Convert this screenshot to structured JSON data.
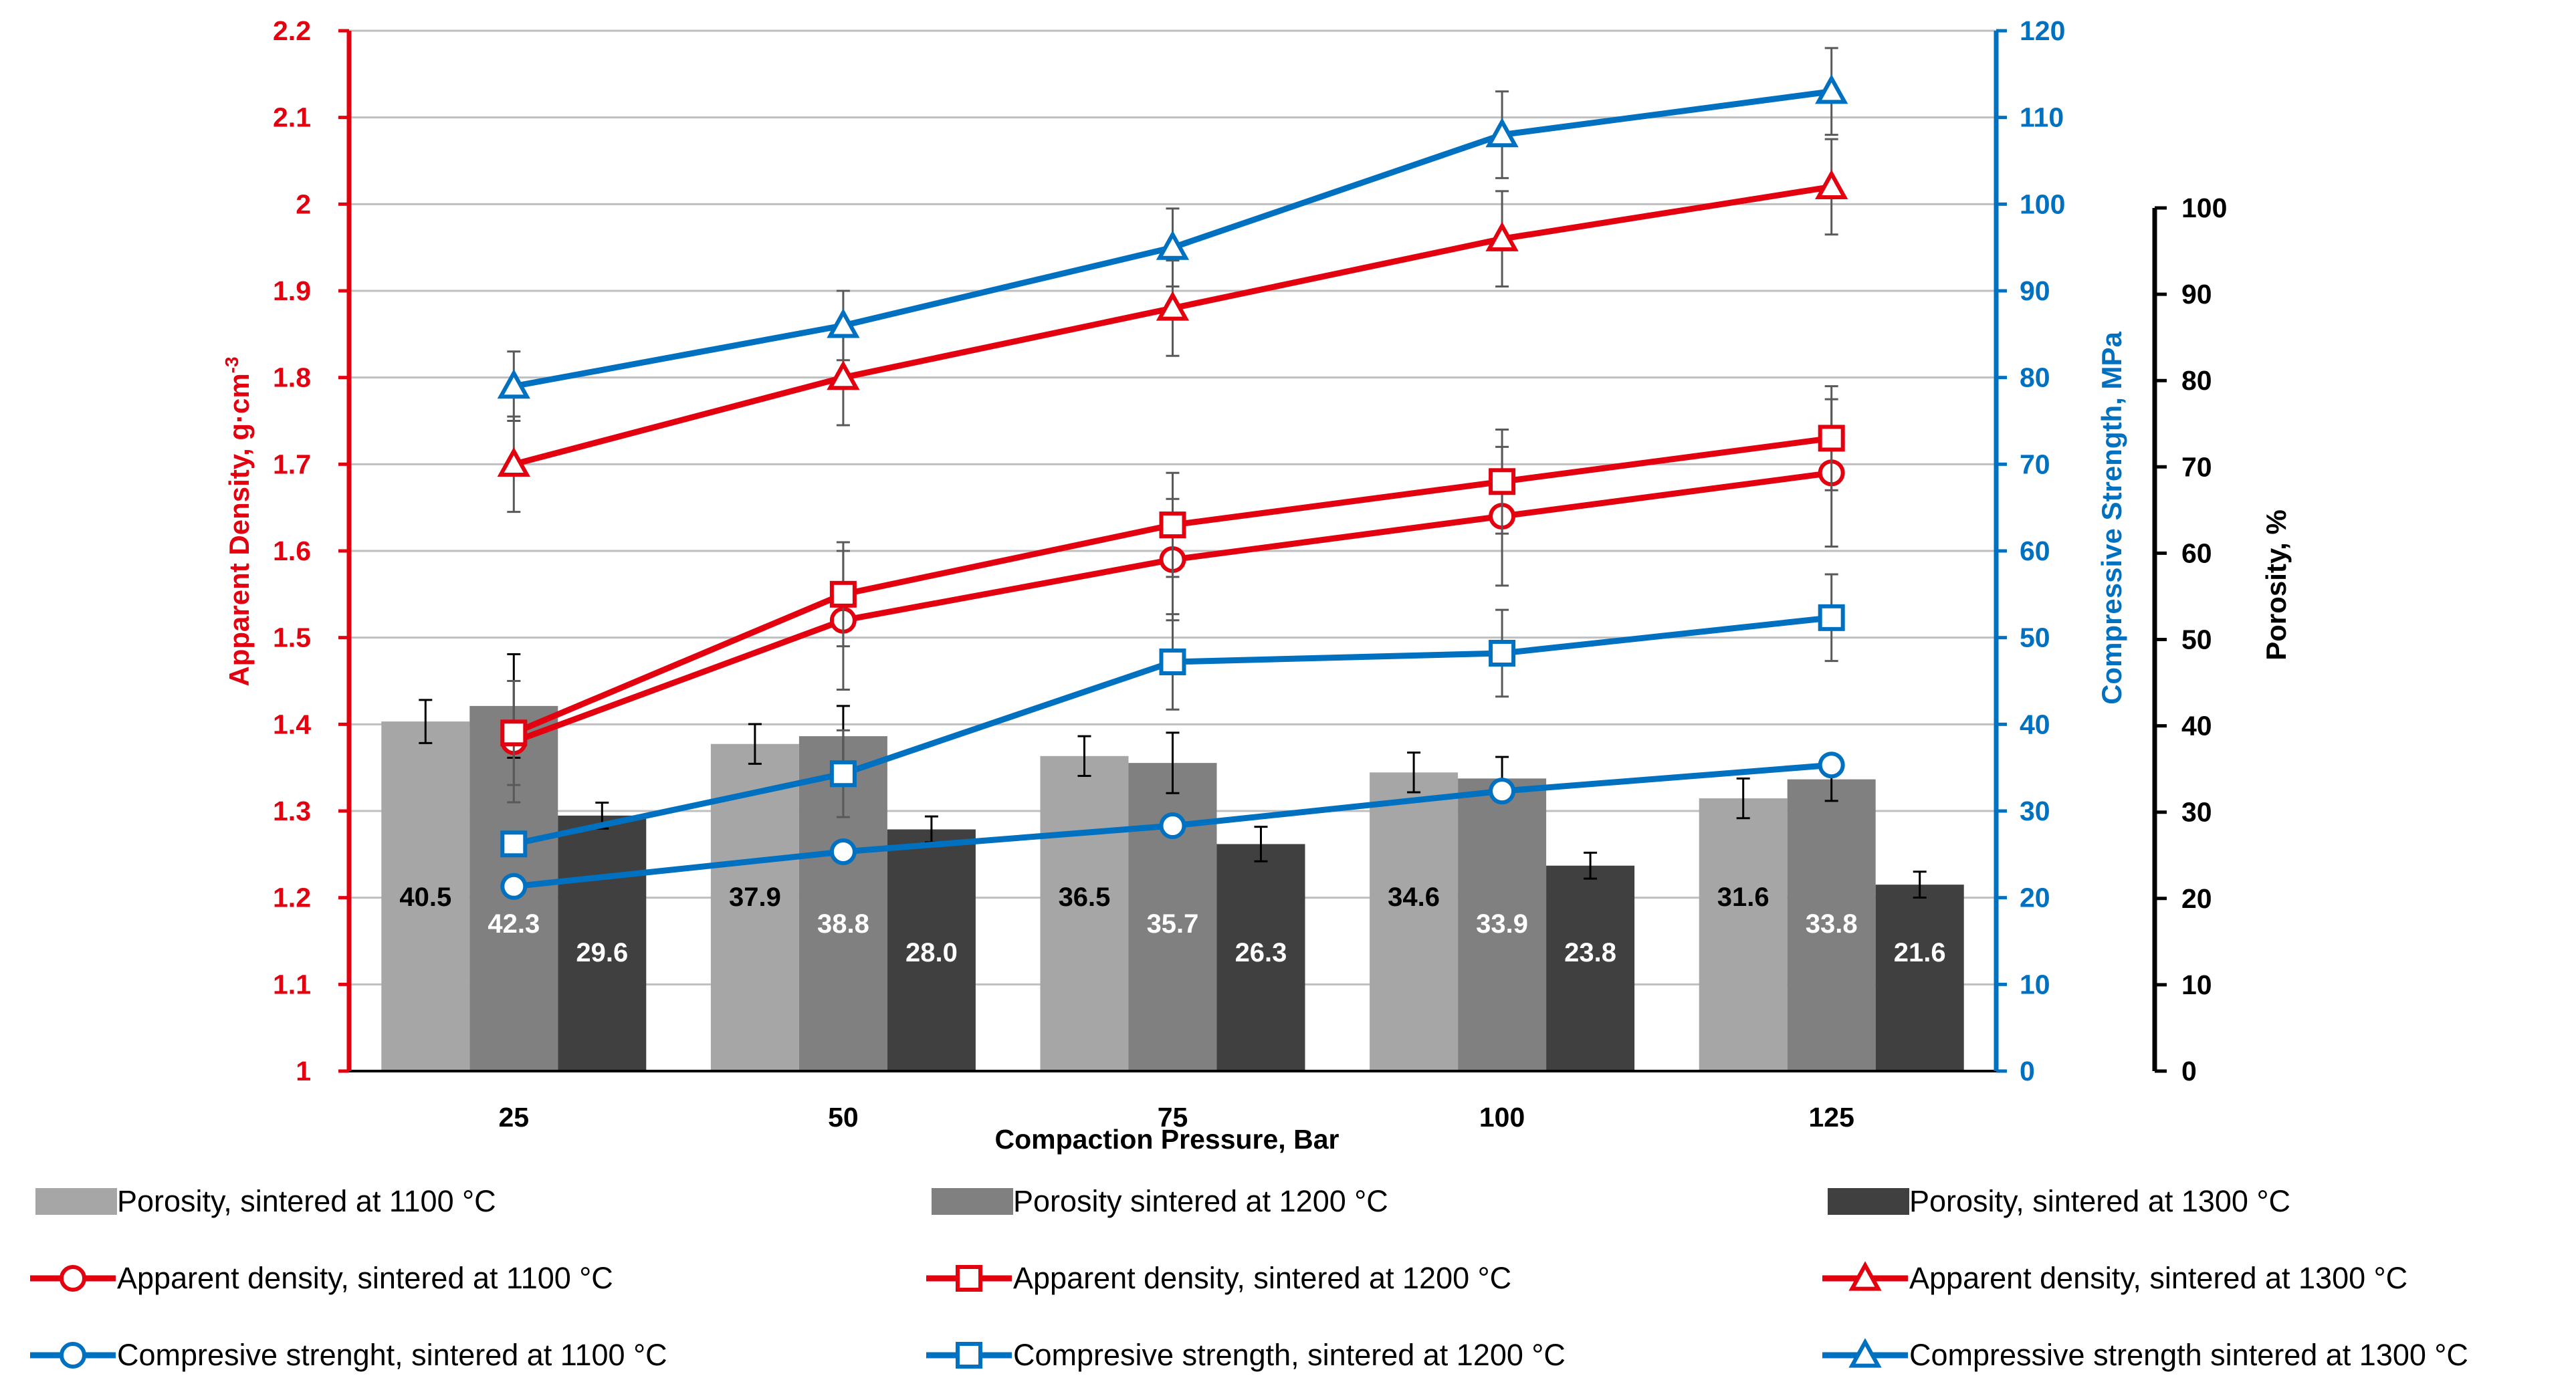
{
  "chart_data": {
    "type": "bar+line",
    "xlabel": "Compaction Pressure, Bar",
    "categories": [
      "25",
      "50",
      "75",
      "100",
      "125"
    ],
    "axes": {
      "density": {
        "label_main": "Apparent Density, g·cm",
        "label_sup": "-3",
        "range": [
          1,
          2.2
        ],
        "ticks": [
          "1",
          "1.1",
          "1.2",
          "1.3",
          "1.4",
          "1.5",
          "1.6",
          "1.7",
          "1.8",
          "1.9",
          "2",
          "2.1",
          "2.2"
        ],
        "color": "#e3000f"
      },
      "strength": {
        "label": "Compressive Strength, MPa",
        "range": [
          0,
          120
        ],
        "ticks": [
          "0",
          "10",
          "20",
          "30",
          "40",
          "50",
          "60",
          "70",
          "80",
          "90",
          "100",
          "110",
          "120"
        ],
        "color": "#0070c0"
      },
      "porosity": {
        "label": "Porosity, %",
        "range": [
          0,
          100
        ],
        "ticks": [
          "0",
          "10",
          "20",
          "30",
          "40",
          "50",
          "60",
          "70",
          "80",
          "90",
          "100"
        ],
        "color": "#000000"
      }
    },
    "bar_series": [
      {
        "name": "Porosity, sintered at 1100 °C",
        "color": "#a6a6a6",
        "label_color": "#000000",
        "values": [
          40.5,
          37.9,
          36.5,
          34.6,
          31.6
        ],
        "labels": [
          "40.5",
          "37.9",
          "36.5",
          "34.6",
          "31.6"
        ],
        "errors": [
          2.5,
          2.3,
          2.3,
          2.3,
          2.3
        ]
      },
      {
        "name": "Porosity sintered at 1200 °C",
        "color": "#808080",
        "label_color": "#ffffff",
        "values": [
          42.3,
          38.8,
          35.7,
          33.9,
          33.8
        ],
        "labels": [
          "42.3",
          "38.8",
          "35.7",
          "33.9",
          "33.8"
        ],
        "errors": [
          6.0,
          3.5,
          3.5,
          2.5,
          2.5
        ]
      },
      {
        "name": "Porosity, sintered at 1300 °C",
        "color": "#404040",
        "label_color": "#ffffff",
        "values": [
          29.6,
          28.0,
          26.3,
          23.8,
          21.6
        ],
        "labels": [
          "29.6",
          "28.0",
          "26.3",
          "23.8",
          "21.6"
        ],
        "errors": [
          1.5,
          1.5,
          2.0,
          1.5,
          1.5
        ]
      }
    ],
    "line_series": [
      {
        "name": "Apparent density, sintered at 1100 °C",
        "axis": "density",
        "color": "#e3000f",
        "marker": "circle",
        "values": [
          1.38,
          1.52,
          1.59,
          1.64,
          1.69
        ],
        "errors": [
          0.07,
          0.08,
          0.07,
          0.08,
          0.085
        ]
      },
      {
        "name": "Apparent density, sintered at 1200 °C",
        "axis": "density",
        "color": "#e3000f",
        "marker": "square",
        "values": [
          1.39,
          1.55,
          1.63,
          1.68,
          1.73
        ],
        "errors": [
          0.06,
          0.06,
          0.06,
          0.06,
          0.06
        ]
      },
      {
        "name": "Apparent density, sintered at 1300 °C",
        "axis": "density",
        "color": "#e3000f",
        "marker": "triangle",
        "values": [
          1.7,
          1.8,
          1.88,
          1.96,
          2.02
        ],
        "errors": [
          0.055,
          0.055,
          0.055,
          0.055,
          0.055
        ]
      },
      {
        "name": "Compresive strenght, sintered at 1100 °C",
        "axis": "strength",
        "color": "#0070c0",
        "marker": "circle",
        "values": [
          21.3,
          25.3,
          28.3,
          32.3,
          35.3
        ],
        "errors": [
          0,
          0,
          0,
          0,
          0
        ]
      },
      {
        "name": "Compresive strength, sintered at 1200 °C",
        "axis": "strength",
        "color": "#0070c0",
        "marker": "square",
        "values": [
          26.2,
          34.3,
          47.2,
          48.2,
          52.3
        ],
        "errors": [
          0,
          5.0,
          5.5,
          5.0,
          5.0
        ]
      },
      {
        "name": "Compressive strength sintered at 1300 °C",
        "axis": "strength",
        "color": "#0070c0",
        "marker": "triangle",
        "values": [
          79.0,
          86.0,
          95.0,
          108.0,
          113.0
        ],
        "errors": [
          4.0,
          4.0,
          4.5,
          5.0,
          5.0
        ]
      }
    ],
    "legend_position": "bottom",
    "grid": true
  }
}
